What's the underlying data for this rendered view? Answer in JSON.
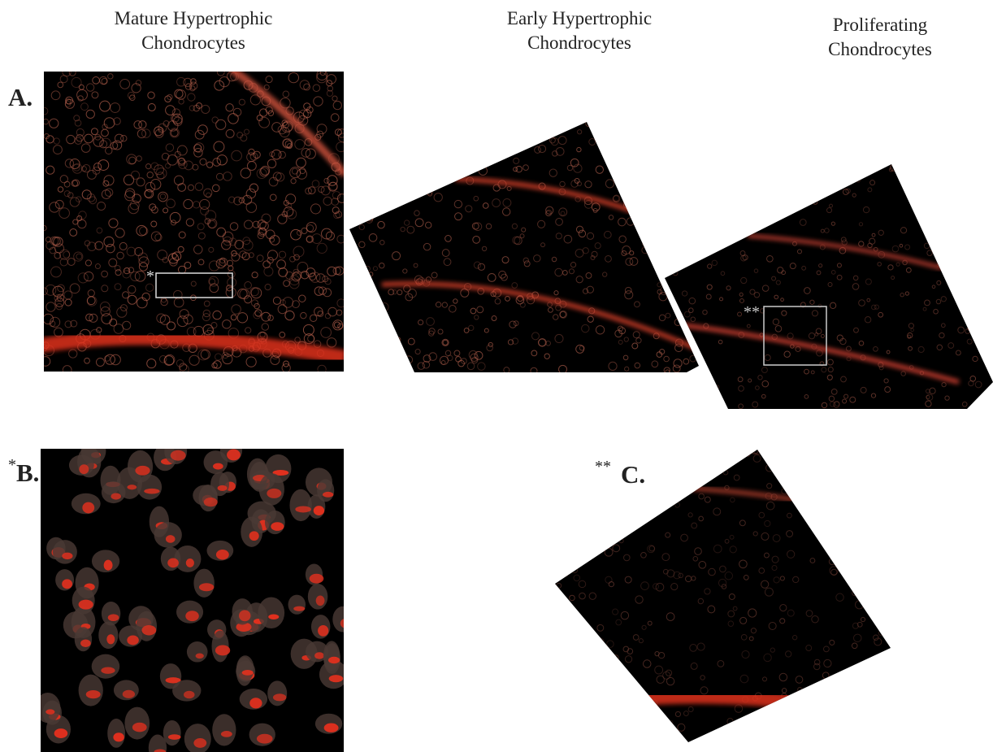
{
  "columns": [
    {
      "lines": [
        "Mature Hypertrophic",
        "Chondrocytes"
      ]
    },
    {
      "lines": [
        "Early Hypertrophic",
        "Chondrocytes"
      ]
    },
    {
      "lines": [
        "Proliferating",
        "Chondrocytes"
      ]
    }
  ],
  "panels": {
    "A": {
      "label": "A."
    },
    "B": {
      "marker": "*",
      "label": "B."
    },
    "C": {
      "marker": "**",
      "label": "C."
    }
  },
  "insets": [
    {
      "marker": "*"
    },
    {
      "marker": "**"
    }
  ]
}
